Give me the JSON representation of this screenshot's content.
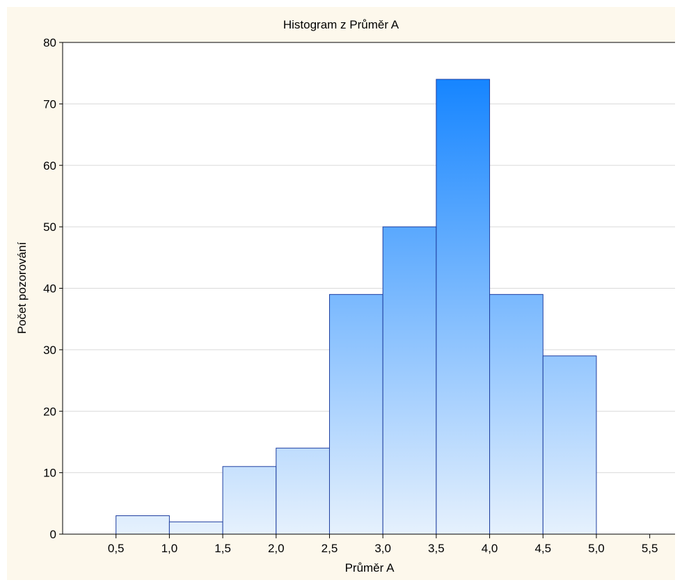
{
  "chart_data": {
    "type": "bar",
    "title": "Histogram z Průměr A",
    "xlabel": "Průměr A",
    "ylabel": "Počet pozorování",
    "bin_edges": [
      0.5,
      1.0,
      1.5,
      2.0,
      2.5,
      3.0,
      3.5,
      4.0,
      4.5,
      5.0
    ],
    "values": [
      3,
      2,
      11,
      14,
      39,
      50,
      74,
      39,
      29
    ],
    "xlim": [
      0.0,
      5.75
    ],
    "ylim": [
      0,
      80
    ],
    "x_ticks": [
      0.5,
      1.0,
      1.5,
      2.0,
      2.5,
      3.0,
      3.5,
      4.0,
      4.5,
      5.0,
      5.5
    ],
    "x_tick_labels": [
      "0,5",
      "1,0",
      "1,5",
      "2,0",
      "2,5",
      "3,0",
      "3,5",
      "4,0",
      "4,5",
      "5,0",
      "5,5"
    ],
    "y_ticks": [
      0,
      10,
      20,
      30,
      40,
      50,
      60,
      70,
      80
    ],
    "y_tick_labels": [
      "0",
      "10",
      "20",
      "30",
      "40",
      "50",
      "60",
      "70",
      "80"
    ],
    "grid": "horizontal",
    "colors": {
      "bar_top": "#1685ff",
      "bar_bottom": "#e6f1fd",
      "bar_stroke": "#1f3fa0",
      "background": "#fdf8ec",
      "plot_background": "#ffffff",
      "grid": "#d9d9d9"
    }
  }
}
